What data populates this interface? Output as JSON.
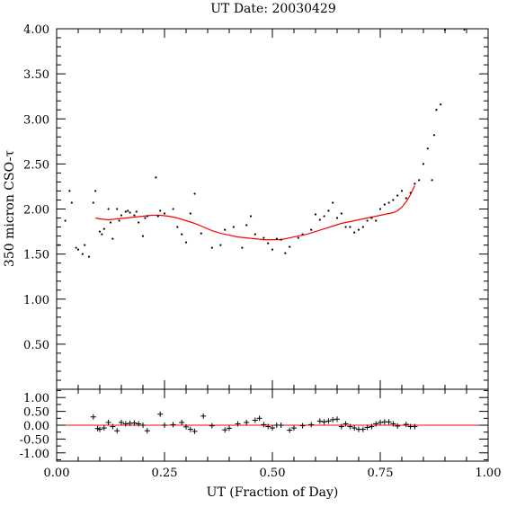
{
  "chart_data": [
    {
      "type": "scatter",
      "title": "UT Date: 20030429",
      "ylabel": "350 micron CSO-τ",
      "xlim": [
        0,
        1
      ],
      "ylim": [
        0,
        4
      ],
      "ytick_labels": [
        "0.50",
        "1.00",
        "1.50",
        "2.00",
        "2.50",
        "3.00",
        "3.50",
        "4.00"
      ],
      "grid": false,
      "series": [
        {
          "marker": "dot",
          "color": "#000000",
          "x": [
            0.005,
            0.02,
            0.03,
            0.035,
            0.045,
            0.05,
            0.06,
            0.065,
            0.075,
            0.085,
            0.09,
            0.1,
            0.105,
            0.11,
            0.12,
            0.125,
            0.13,
            0.14,
            0.145,
            0.15,
            0.16,
            0.165,
            0.17,
            0.18,
            0.185,
            0.19,
            0.2,
            0.205,
            0.21,
            0.23,
            0.235,
            0.24,
            0.25,
            0.27,
            0.28,
            0.29,
            0.3,
            0.31,
            0.32,
            0.335,
            0.36,
            0.38,
            0.39,
            0.41,
            0.43,
            0.44,
            0.45,
            0.46,
            0.48,
            0.49,
            0.5,
            0.51,
            0.52,
            0.53,
            0.54,
            0.56,
            0.57,
            0.59,
            0.6,
            0.61,
            0.62,
            0.63,
            0.64,
            0.65,
            0.66,
            0.67,
            0.68,
            0.69,
            0.7,
            0.71,
            0.72,
            0.73,
            0.74,
            0.75,
            0.76,
            0.77,
            0.78,
            0.79,
            0.8,
            0.81,
            0.82,
            0.83,
            0.84,
            0.85,
            0.86,
            0.87,
            0.875,
            0.88,
            0.89,
            0.9,
            0.945
          ],
          "y": [
            1.6,
            1.87,
            2.2,
            2.07,
            1.57,
            1.55,
            1.5,
            1.6,
            1.47,
            2.07,
            2.2,
            1.75,
            1.72,
            1.78,
            2.0,
            1.85,
            1.67,
            2.0,
            1.87,
            1.93,
            1.97,
            1.98,
            1.96,
            1.93,
            1.97,
            1.85,
            1.7,
            1.9,
            1.92,
            2.35,
            1.92,
            1.98,
            1.95,
            2.0,
            1.8,
            1.72,
            1.63,
            1.95,
            2.17,
            1.73,
            1.57,
            1.6,
            1.77,
            1.8,
            1.57,
            1.82,
            1.92,
            1.72,
            1.68,
            1.62,
            1.55,
            1.67,
            1.66,
            1.51,
            1.58,
            1.68,
            1.72,
            1.77,
            1.94,
            1.88,
            1.92,
            1.98,
            2.07,
            1.9,
            1.95,
            1.8,
            1.8,
            1.74,
            1.77,
            1.8,
            1.87,
            1.9,
            1.87,
            2.0,
            2.05,
            2.07,
            2.1,
            2.15,
            2.2,
            2.12,
            2.18,
            2.28,
            2.32,
            2.5,
            2.67,
            2.32,
            2.82,
            3.1,
            3.16,
            4.0,
            4.0
          ]
        },
        {
          "marker": "line",
          "color": "#ff0000",
          "x": [
            0.09,
            0.1,
            0.12,
            0.14,
            0.16,
            0.18,
            0.2,
            0.22,
            0.24,
            0.26,
            0.28,
            0.3,
            0.32,
            0.34,
            0.36,
            0.38,
            0.4,
            0.42,
            0.44,
            0.46,
            0.48,
            0.5,
            0.52,
            0.54,
            0.56,
            0.58,
            0.6,
            0.62,
            0.64,
            0.66,
            0.68,
            0.7,
            0.72,
            0.74,
            0.76,
            0.78,
            0.79,
            0.8,
            0.81,
            0.82,
            0.83
          ],
          "y": [
            1.9,
            1.89,
            1.88,
            1.89,
            1.9,
            1.91,
            1.92,
            1.93,
            1.93,
            1.92,
            1.9,
            1.87,
            1.84,
            1.8,
            1.76,
            1.73,
            1.71,
            1.69,
            1.68,
            1.67,
            1.66,
            1.66,
            1.66,
            1.68,
            1.7,
            1.72,
            1.75,
            1.78,
            1.81,
            1.84,
            1.86,
            1.88,
            1.9,
            1.92,
            1.94,
            1.96,
            1.98,
            2.02,
            2.08,
            2.16,
            2.26
          ]
        }
      ]
    },
    {
      "type": "scatter",
      "xlabel": "UT (Fraction of Day)",
      "xlim": [
        0,
        1
      ],
      "ylim": [
        -1.3,
        1.3
      ],
      "xtick_labels": [
        "0.00",
        "0.25",
        "0.50",
        "0.75",
        "1.00"
      ],
      "ytick_labels": [
        "-1.00",
        "-0.50",
        "0.00",
        "0.50",
        "1.00"
      ],
      "grid": false,
      "reference_line": {
        "y": 0,
        "color": "#ff0000"
      },
      "series": [
        {
          "marker": "plus",
          "color": "#000000",
          "x": [
            0.085,
            0.095,
            0.1,
            0.11,
            0.12,
            0.13,
            0.14,
            0.15,
            0.16,
            0.17,
            0.18,
            0.19,
            0.2,
            0.21,
            0.24,
            0.25,
            0.27,
            0.29,
            0.3,
            0.31,
            0.32,
            0.34,
            0.36,
            0.39,
            0.4,
            0.42,
            0.44,
            0.46,
            0.47,
            0.48,
            0.49,
            0.5,
            0.51,
            0.52,
            0.54,
            0.55,
            0.57,
            0.59,
            0.61,
            0.62,
            0.63,
            0.64,
            0.65,
            0.66,
            0.67,
            0.68,
            0.69,
            0.7,
            0.71,
            0.72,
            0.73,
            0.74,
            0.75,
            0.76,
            0.77,
            0.78,
            0.79,
            0.81,
            0.82,
            0.83
          ],
          "y": [
            0.3,
            -0.12,
            -0.15,
            -0.1,
            0.1,
            -0.05,
            -0.2,
            0.1,
            0.05,
            0.07,
            0.08,
            0.05,
            0.0,
            -0.2,
            0.4,
            0.0,
            0.02,
            0.1,
            -0.06,
            -0.15,
            -0.22,
            0.33,
            -0.02,
            -0.17,
            -0.11,
            0.05,
            0.1,
            0.18,
            0.25,
            0.02,
            -0.05,
            -0.1,
            0.0,
            0.0,
            -0.18,
            -0.1,
            -0.02,
            0.02,
            0.15,
            0.12,
            0.15,
            0.2,
            0.22,
            -0.05,
            0.05,
            -0.05,
            -0.1,
            -0.15,
            -0.15,
            -0.08,
            -0.05,
            0.05,
            0.1,
            0.12,
            0.12,
            0.05,
            -0.03,
            0.03,
            -0.05,
            -0.05
          ]
        }
      ]
    }
  ]
}
